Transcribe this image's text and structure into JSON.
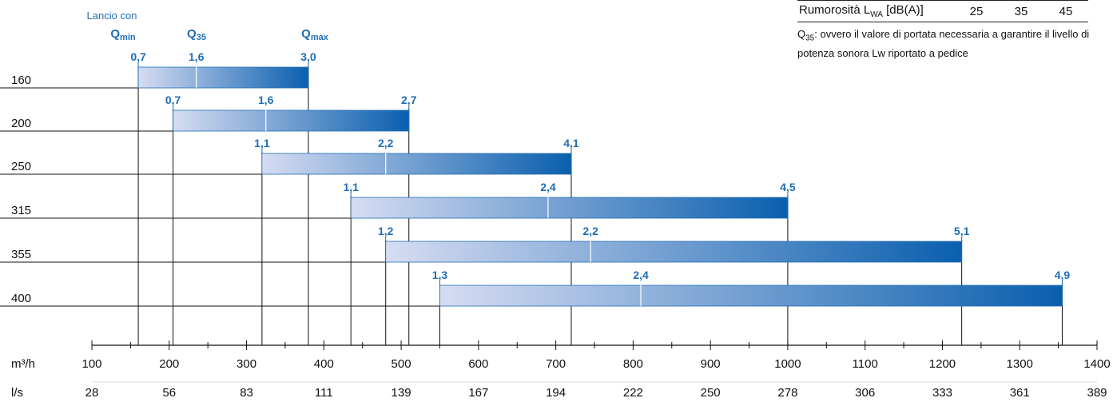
{
  "legend": {
    "rows": [
      {
        "label_main": "Rumorosità L",
        "label_sub": "WA",
        "label_tail": " [dB(A)]",
        "values": [
          "25",
          "35",
          "45"
        ]
      }
    ],
    "note_prefix": "Q",
    "note_sub": "35",
    "note_text": ": ovvero il valore di portata necessaria a garantire il livello di potenza sonora Lw riportato a pedice"
  },
  "header": {
    "caption": "Lancio con",
    "q_min": {
      "main": "Q",
      "sub": "min"
    },
    "q_35": {
      "main": "Q",
      "sub": "35"
    },
    "q_max": {
      "main": "Q",
      "sub": "max"
    }
  },
  "chart_data": {
    "type": "bar",
    "orientation": "horizontal-range",
    "units": {
      "primary": "m³/h",
      "secondary": "l/s"
    },
    "x_axis": {
      "label": "m³/h",
      "min": 100,
      "max": 1400,
      "ticks": [
        100,
        200,
        300,
        400,
        500,
        600,
        700,
        800,
        900,
        1000,
        1100,
        1200,
        1300,
        1400
      ],
      "tick_labels": [
        "100",
        "200",
        "300",
        "400",
        "500",
        "600",
        "700",
        "800",
        "900",
        "1000",
        "1100",
        "1200",
        "1300",
        "1400"
      ]
    },
    "x2_axis": {
      "label": "l/s",
      "tick_labels": [
        "28",
        "56",
        "83",
        "111",
        "139",
        "167",
        "194",
        "222",
        "250",
        "278",
        "306",
        "333",
        "361",
        "389"
      ]
    },
    "categories": [
      "160",
      "200",
      "250",
      "315",
      "355",
      "400"
    ],
    "rows": [
      {
        "size": "160",
        "q_min": 160,
        "q_35": 235,
        "q_max": 380,
        "lancio_min": "0,7",
        "lancio_35": "1,6",
        "lancio_max": "3,0"
      },
      {
        "size": "200",
        "q_min": 205,
        "q_35": 325,
        "q_max": 510,
        "lancio_min": "0,7",
        "lancio_35": "1,6",
        "lancio_max": "2,7"
      },
      {
        "size": "250",
        "q_min": 320,
        "q_35": 480,
        "q_max": 720,
        "lancio_min": "1,1",
        "lancio_35": "2,2",
        "lancio_max": "4,1"
      },
      {
        "size": "315",
        "q_min": 435,
        "q_35": 690,
        "q_max": 1000,
        "lancio_min": "1,1",
        "lancio_35": "2,4",
        "lancio_max": "4,5"
      },
      {
        "size": "355",
        "q_min": 480,
        "q_35": 745,
        "q_max": 1225,
        "lancio_min": "1,2",
        "lancio_35": "2,2",
        "lancio_max": "5,1"
      },
      {
        "size": "400",
        "q_min": 550,
        "q_35": 810,
        "q_max": 1355,
        "lancio_min": "1,3",
        "lancio_35": "2,4",
        "lancio_max": "4,9"
      }
    ],
    "colors": {
      "bar_light": "#d6dcf2",
      "bar_dark": "#0a5fae",
      "label": "#1f6db5",
      "axis": "#111111"
    }
  }
}
